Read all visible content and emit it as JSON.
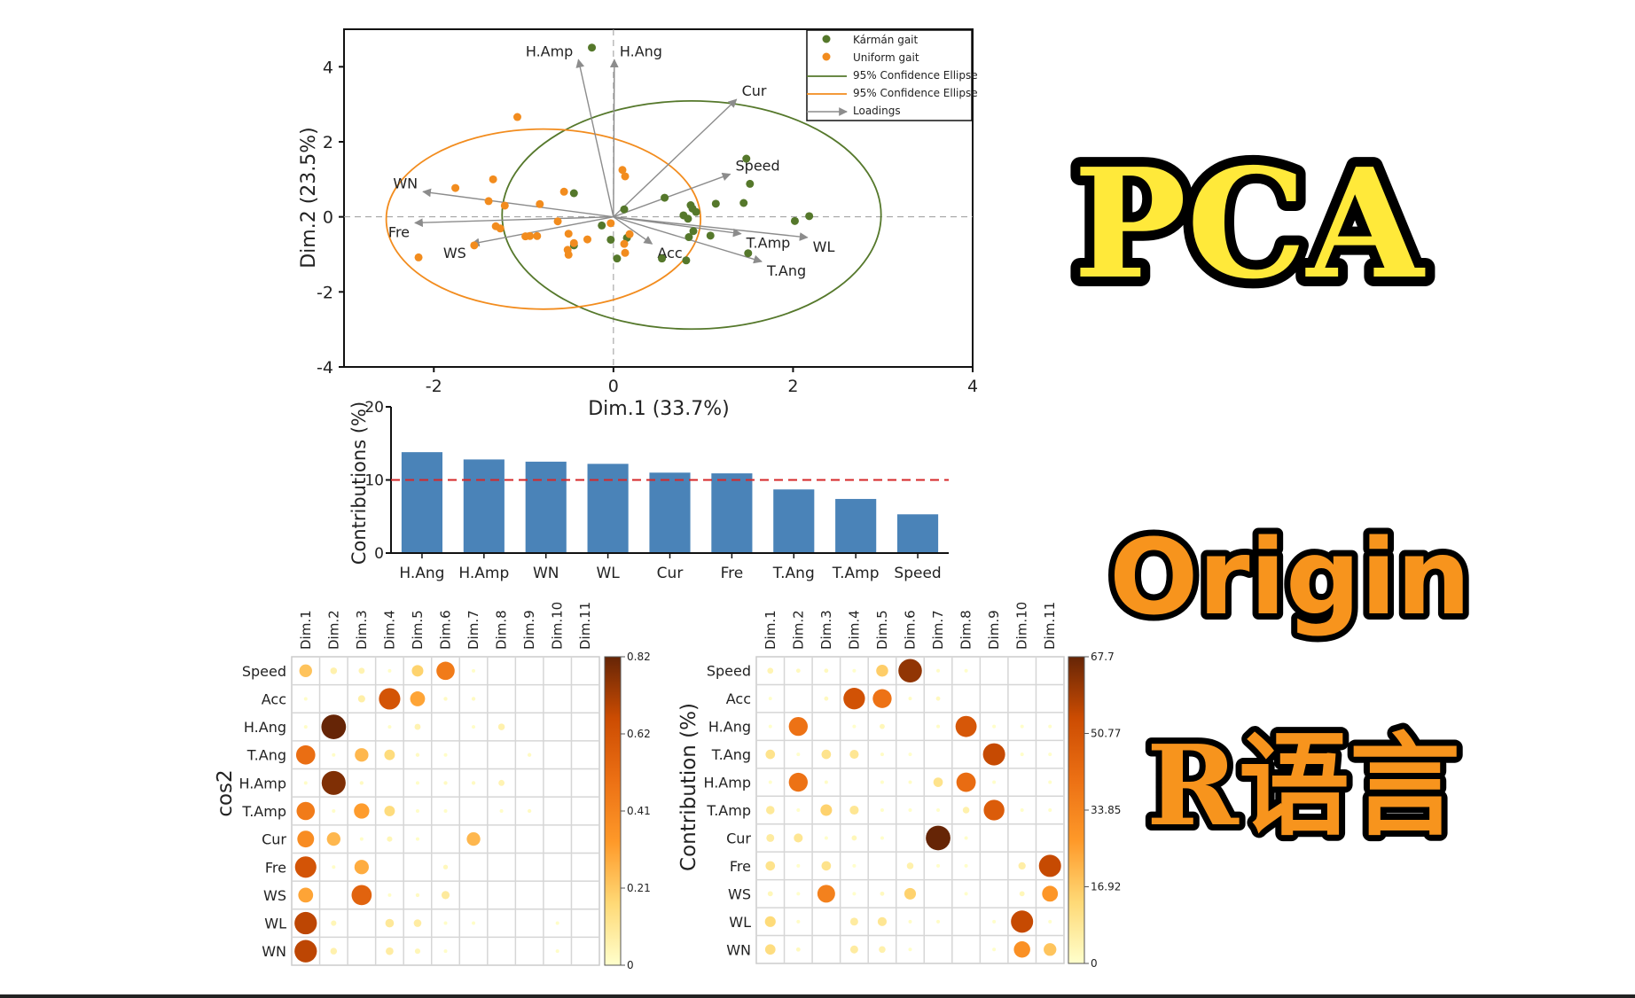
{
  "chart_data": [
    {
      "type": "scatter",
      "xlabel": "Dim.1 (33.7%)",
      "ylabel": "Dim.2 (23.5%)",
      "xlim": [
        -3,
        4
      ],
      "ylim": [
        -4,
        5
      ],
      "xticks": [
        "-2",
        "0",
        "2",
        "4"
      ],
      "yticks": [
        "-4",
        "-2",
        "0",
        "2",
        "4"
      ],
      "legend_position": "top-right",
      "legend": [
        "Kármán gait",
        "Uniform gait",
        "95% Confidence Ellipse",
        "95% Confidence Ellipse",
        "Loadings"
      ],
      "colors": {
        "karman": "#55782B",
        "uniform": "#F28C1E",
        "loadings": "#8C8C8C"
      },
      "series": [
        {
          "name": "Kármán gait",
          "points": [
            [
              -0.24,
              4.51
            ],
            [
              1.48,
              1.55
            ],
            [
              1.52,
              0.88
            ],
            [
              -0.44,
              0.63
            ],
            [
              0.57,
              0.51
            ],
            [
              1.14,
              0.35
            ],
            [
              1.45,
              0.37
            ],
            [
              0.86,
              0.31
            ],
            [
              0.88,
              0.22
            ],
            [
              0.92,
              0.13
            ],
            [
              0.12,
              0.2
            ],
            [
              0.78,
              0.04
            ],
            [
              0.83,
              -0.05
            ],
            [
              2.18,
              0.02
            ],
            [
              2.02,
              -0.11
            ],
            [
              -0.13,
              -0.23
            ],
            [
              0.89,
              -0.38
            ],
            [
              0.84,
              -0.54
            ],
            [
              1.08,
              -0.5
            ],
            [
              -0.03,
              -0.61
            ],
            [
              0.15,
              -0.56
            ],
            [
              -0.44,
              -0.76
            ],
            [
              1.5,
              -0.97
            ],
            [
              0.04,
              -1.11
            ],
            [
              0.54,
              -1.11
            ],
            [
              0.81,
              -1.16
            ]
          ],
          "ellipse": {
            "cx": 0.87,
            "cy": 0.05,
            "rx": 2.11,
            "ry": 3.04
          }
        },
        {
          "name": "Uniform gait",
          "points": [
            [
              -1.07,
              2.66
            ],
            [
              0.1,
              1.25
            ],
            [
              0.13,
              1.08
            ],
            [
              -1.34,
              1.0
            ],
            [
              -1.76,
              0.77
            ],
            [
              -0.55,
              0.67
            ],
            [
              -1.39,
              0.42
            ],
            [
              -1.21,
              0.3
            ],
            [
              -0.82,
              0.34
            ],
            [
              -0.62,
              -0.12
            ],
            [
              -0.03,
              -0.17
            ],
            [
              -1.31,
              -0.25
            ],
            [
              -1.26,
              -0.31
            ],
            [
              -0.98,
              -0.52
            ],
            [
              -0.93,
              -0.51
            ],
            [
              -0.85,
              -0.51
            ],
            [
              -0.5,
              -0.45
            ],
            [
              0.18,
              -0.46
            ],
            [
              -0.29,
              -0.6
            ],
            [
              0.12,
              -0.72
            ],
            [
              -0.44,
              -0.7
            ],
            [
              -1.55,
              -0.76
            ],
            [
              -0.51,
              -0.88
            ],
            [
              -0.5,
              -1.01
            ],
            [
              0.13,
              -0.96
            ],
            [
              -2.17,
              -1.08
            ]
          ],
          "ellipse": {
            "cx": -0.78,
            "cy": -0.06,
            "rx": 1.75,
            "ry": 2.4
          }
        }
      ],
      "loadings": [
        {
          "name": "H.Amp",
          "x": -0.39,
          "y": 4.19
        },
        {
          "name": "H.Ang",
          "x": 0.01,
          "y": 4.19
        },
        {
          "name": "Cur",
          "x": 1.37,
          "y": 3.13
        },
        {
          "name": "Speed",
          "x": 1.3,
          "y": 1.14
        },
        {
          "name": "T.Amp",
          "x": 1.42,
          "y": -0.45
        },
        {
          "name": "WL",
          "x": 2.16,
          "y": -0.55
        },
        {
          "name": "T.Ang",
          "x": 1.65,
          "y": -1.19
        },
        {
          "name": "Acc",
          "x": 0.43,
          "y": -0.72
        },
        {
          "name": "WS",
          "x": -1.58,
          "y": -0.72
        },
        {
          "name": "Fre",
          "x": -2.21,
          "y": -0.16
        },
        {
          "name": "WN",
          "x": -2.12,
          "y": 0.67
        }
      ]
    },
    {
      "type": "bar",
      "ylabel": "Contributions (%)",
      "ylim": [
        0,
        20
      ],
      "yticks": [
        "0",
        "10",
        "20"
      ],
      "categories": [
        "H.Ang",
        "H.Amp",
        "WN",
        "WL",
        "Cur",
        "Fre",
        "T.Ang",
        "T.Amp",
        "Speed"
      ],
      "values": [
        13.8,
        12.8,
        12.5,
        12.2,
        11.0,
        10.9,
        8.7,
        7.4,
        5.3
      ],
      "reference_line": 10,
      "colors": {
        "bar": "#4A83B8",
        "reference_line": "#D62728"
      }
    },
    {
      "type": "heatmap",
      "ylabel": "cos2",
      "columns": [
        "Dim.1",
        "Dim.2",
        "Dim.3",
        "Dim.4",
        "Dim.5",
        "Dim.6",
        "Dim.7",
        "Dim.8",
        "Dim.9",
        "Dim.10",
        "Dim.11"
      ],
      "rows": [
        "Speed",
        "Acc",
        "H.Ang",
        "T.Ang",
        "H.Amp",
        "T.Amp",
        "Cur",
        "Fre",
        "WS",
        "WL",
        "WN"
      ],
      "colorbar_ticks": [
        "0.82",
        "0.62",
        "0.41",
        "0.21",
        "0"
      ],
      "range": [
        0,
        0.82
      ],
      "values": [
        [
          0.22,
          0.06,
          0.05,
          0.01,
          0.18,
          0.45,
          0.01,
          0,
          0,
          0,
          0
        ],
        [
          0.01,
          0,
          0.07,
          0.62,
          0.3,
          0.02,
          0.02,
          0,
          0,
          0,
          0
        ],
        [
          0.01,
          0.82,
          0,
          0.01,
          0.05,
          0,
          0.01,
          0.06,
          0,
          0,
          0
        ],
        [
          0.5,
          0.01,
          0.25,
          0.15,
          0.02,
          0.01,
          0,
          0,
          0.02,
          0,
          0
        ],
        [
          0.01,
          0.78,
          0.02,
          0,
          0.01,
          0.02,
          0.02,
          0.05,
          0,
          0,
          0
        ],
        [
          0.45,
          0.01,
          0.32,
          0.15,
          0.01,
          0.01,
          0,
          0.01,
          0.02,
          0,
          0
        ],
        [
          0.38,
          0.25,
          0.01,
          0.04,
          0.01,
          0,
          0.25,
          0,
          0,
          0,
          0
        ],
        [
          0.62,
          0.01,
          0.28,
          0,
          0,
          0.03,
          0,
          0,
          0,
          0,
          0
        ],
        [
          0.3,
          0,
          0.55,
          0.01,
          0.02,
          0.09,
          0,
          0,
          0,
          0,
          0
        ],
        [
          0.68,
          0.04,
          0,
          0.1,
          0.08,
          0.01,
          0.01,
          0,
          0,
          0.01,
          0
        ],
        [
          0.68,
          0.06,
          0,
          0.08,
          0.04,
          0.01,
          0,
          0,
          0,
          0.01,
          0
        ]
      ]
    },
    {
      "type": "heatmap",
      "ylabel": "Contribution (%)",
      "columns": [
        "Dim.1",
        "Dim.2",
        "Dim.3",
        "Dim.4",
        "Dim.5",
        "Dim.6",
        "Dim.7",
        "Dim.8",
        "Dim.9",
        "Dim.10",
        "Dim.11"
      ],
      "rows": [
        "Speed",
        "Acc",
        "H.Ang",
        "T.Ang",
        "H.Amp",
        "T.Amp",
        "Cur",
        "Fre",
        "WS",
        "WL",
        "WN"
      ],
      "colorbar_ticks": [
        "67.7",
        "50.77",
        "33.85",
        "16.92",
        "0"
      ],
      "range": [
        0,
        67.7
      ],
      "values": [
        [
          4,
          2,
          2,
          0.5,
          16,
          62,
          1,
          0.3,
          0,
          0,
          0
        ],
        [
          0.2,
          0,
          2,
          52,
          40,
          1,
          2,
          0,
          0,
          0,
          0
        ],
        [
          0.1,
          40,
          0,
          0.3,
          3,
          0,
          1,
          50,
          0.5,
          0.3,
          0.3
        ],
        [
          10,
          0.3,
          10,
          9,
          1,
          0.2,
          0,
          0,
          55,
          0.5,
          0.3
        ],
        [
          0.2,
          40,
          1,
          0,
          0.5,
          1,
          10,
          42,
          0.5,
          0,
          0.5
        ],
        [
          8,
          0.3,
          15,
          9,
          0.5,
          0.3,
          0.2,
          5,
          48,
          0.3,
          0.3
        ],
        [
          7,
          9,
          0.3,
          3,
          0.3,
          0,
          67.7,
          0.5,
          0,
          0,
          0
        ],
        [
          10,
          0.3,
          10,
          0.3,
          0,
          5,
          0.3,
          0.3,
          0,
          6,
          55
        ],
        [
          3,
          0.2,
          35,
          0.3,
          2,
          15,
          0,
          0.3,
          0,
          3,
          28
        ],
        [
          13,
          1,
          0,
          7,
          9,
          1,
          1,
          0,
          0.5,
          55,
          0.3
        ],
        [
          12,
          2,
          0,
          7,
          5,
          0.5,
          0,
          0,
          0.5,
          30,
          18
        ]
      ]
    }
  ],
  "titles": {
    "pca": "PCA",
    "origin": "Origin",
    "r_lang": "R语言",
    "colors": {
      "pca_fill": "#FFE93A",
      "orange_fill": "#F7941D",
      "outline": "#000000"
    }
  }
}
